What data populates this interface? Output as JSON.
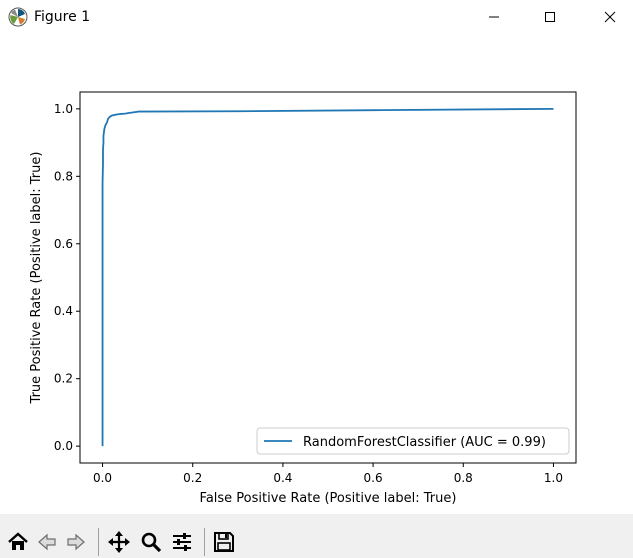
{
  "window": {
    "title": "Figure 1",
    "controls": [
      "minimize",
      "maximize",
      "close"
    ]
  },
  "toolbar": {
    "buttons": [
      {
        "icon": "home-icon",
        "label": "Home"
      },
      {
        "icon": "back-icon",
        "label": "Back"
      },
      {
        "icon": "forward-icon",
        "label": "Forward"
      },
      {
        "icon": "pan-icon",
        "label": "Pan"
      },
      {
        "icon": "zoom-icon",
        "label": "Zoom"
      },
      {
        "icon": "configure-subplots-icon",
        "label": "Configure subplots"
      },
      {
        "icon": "save-icon",
        "label": "Save"
      }
    ]
  },
  "chart_data": {
    "type": "line",
    "title": "",
    "xlabel": "False Positive Rate (Positive label: True)",
    "ylabel": "True Positive Rate (Positive label: True)",
    "xlim": [
      -0.05,
      1.05
    ],
    "ylim": [
      -0.05,
      1.05
    ],
    "xticks": [
      0.0,
      0.2,
      0.4,
      0.6,
      0.8,
      1.0
    ],
    "xtick_labels": [
      "0.0",
      "0.2",
      "0.4",
      "0.6",
      "0.8",
      "1.0"
    ],
    "yticks": [
      0.0,
      0.2,
      0.4,
      0.6,
      0.8,
      1.0
    ],
    "ytick_labels": [
      "0.0",
      "0.2",
      "0.4",
      "0.6",
      "0.8",
      "1.0"
    ],
    "grid": false,
    "legend_position": "lower right",
    "series": [
      {
        "name": "RandomForestClassifier (AUC = 0.99)",
        "color": "#1f77b4",
        "x": [
          0.0,
          0.0,
          0.001,
          0.001,
          0.002,
          0.002,
          0.003,
          0.004,
          0.005,
          0.006,
          0.008,
          0.01,
          0.012,
          0.015,
          0.02,
          0.03,
          0.04,
          0.05,
          0.06,
          0.07,
          0.08,
          0.3,
          0.6,
          1.0
        ],
        "y": [
          0.0,
          0.78,
          0.84,
          0.88,
          0.9,
          0.92,
          0.93,
          0.94,
          0.945,
          0.95,
          0.955,
          0.96,
          0.97,
          0.975,
          0.98,
          0.983,
          0.985,
          0.986,
          0.988,
          0.99,
          0.992,
          0.993,
          0.996,
          1.0
        ]
      }
    ]
  }
}
